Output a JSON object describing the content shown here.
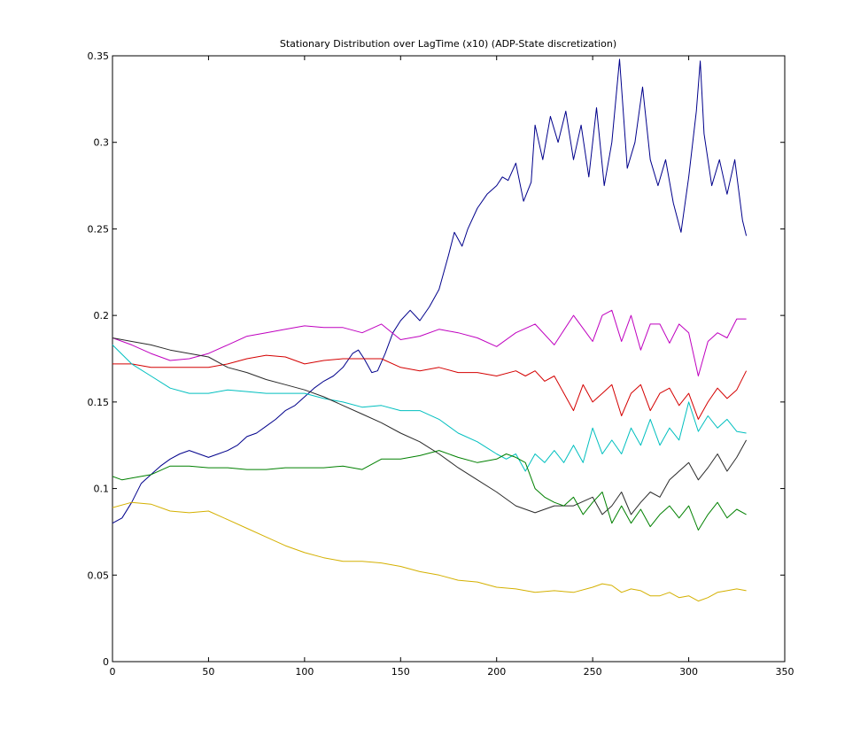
{
  "chart_data": {
    "type": "line",
    "title": "Stationary Distribution over LagTime (x10) (ADP-State discretization)",
    "xlabel": "",
    "ylabel": "",
    "xlim": [
      0,
      350
    ],
    "ylim": [
      0,
      0.35
    ],
    "xticks": [
      0,
      50,
      100,
      150,
      200,
      250,
      300,
      350
    ],
    "yticks": [
      0,
      0.05,
      0.1,
      0.15,
      0.2,
      0.25,
      0.3,
      0.35
    ],
    "xtick_labels": [
      "0",
      "50",
      "100",
      "150",
      "200",
      "250",
      "300",
      "350"
    ],
    "ytick_labels": [
      "0",
      "0.05",
      "0.1",
      "0.15",
      "0.2",
      "0.25",
      "0.3",
      "0.35"
    ],
    "grid": false,
    "series": [
      {
        "color": "#00008b",
        "x": [
          0,
          5,
          10,
          15,
          20,
          25,
          30,
          35,
          40,
          45,
          50,
          55,
          60,
          65,
          70,
          75,
          80,
          85,
          90,
          95,
          100,
          105,
          110,
          115,
          120,
          125,
          128,
          131,
          135,
          138,
          142,
          146,
          150,
          155,
          160,
          165,
          170,
          175,
          178,
          182,
          185,
          190,
          195,
          200,
          203,
          206,
          210,
          214,
          218,
          220,
          224,
          228,
          232,
          236,
          240,
          244,
          248,
          252,
          256,
          260,
          264,
          268,
          272,
          276,
          280,
          284,
          288,
          292,
          296,
          300,
          304,
          306,
          308,
          312,
          316,
          320,
          324,
          328,
          330
        ],
        "y": [
          0.08,
          0.083,
          0.092,
          0.103,
          0.108,
          0.113,
          0.117,
          0.12,
          0.122,
          0.12,
          0.118,
          0.12,
          0.122,
          0.125,
          0.13,
          0.132,
          0.136,
          0.14,
          0.145,
          0.148,
          0.153,
          0.158,
          0.162,
          0.165,
          0.17,
          0.178,
          0.18,
          0.175,
          0.167,
          0.168,
          0.178,
          0.19,
          0.197,
          0.203,
          0.197,
          0.205,
          0.215,
          0.235,
          0.248,
          0.24,
          0.25,
          0.262,
          0.27,
          0.275,
          0.28,
          0.278,
          0.288,
          0.266,
          0.277,
          0.31,
          0.29,
          0.315,
          0.3,
          0.318,
          0.29,
          0.31,
          0.28,
          0.32,
          0.275,
          0.3,
          0.348,
          0.285,
          0.3,
          0.332,
          0.29,
          0.275,
          0.29,
          0.265,
          0.248,
          0.28,
          0.318,
          0.347,
          0.305,
          0.275,
          0.29,
          0.27,
          0.29,
          0.255,
          0.246
        ]
      },
      {
        "color": "#bf00bf",
        "x": [
          0,
          10,
          20,
          30,
          40,
          50,
          60,
          70,
          80,
          90,
          100,
          110,
          120,
          130,
          140,
          150,
          160,
          170,
          180,
          190,
          200,
          210,
          220,
          230,
          240,
          250,
          255,
          260,
          265,
          270,
          275,
          280,
          285,
          290,
          295,
          300,
          305,
          310,
          315,
          320,
          325,
          330
        ],
        "y": [
          0.187,
          0.183,
          0.178,
          0.174,
          0.175,
          0.178,
          0.183,
          0.188,
          0.19,
          0.192,
          0.194,
          0.193,
          0.193,
          0.19,
          0.195,
          0.186,
          0.188,
          0.192,
          0.19,
          0.187,
          0.182,
          0.19,
          0.195,
          0.183,
          0.2,
          0.185,
          0.2,
          0.203,
          0.185,
          0.2,
          0.18,
          0.195,
          0.195,
          0.184,
          0.195,
          0.19,
          0.165,
          0.185,
          0.19,
          0.187,
          0.198,
          0.198
        ]
      },
      {
        "color": "#d40000",
        "x": [
          0,
          10,
          20,
          30,
          40,
          50,
          60,
          70,
          80,
          90,
          100,
          110,
          120,
          130,
          140,
          150,
          160,
          170,
          180,
          190,
          200,
          210,
          215,
          220,
          225,
          230,
          240,
          245,
          250,
          255,
          260,
          265,
          270,
          275,
          280,
          285,
          290,
          295,
          300,
          305,
          310,
          315,
          320,
          325,
          330
        ],
        "y": [
          0.172,
          0.172,
          0.17,
          0.17,
          0.17,
          0.17,
          0.172,
          0.175,
          0.177,
          0.176,
          0.172,
          0.174,
          0.175,
          0.175,
          0.175,
          0.17,
          0.168,
          0.17,
          0.167,
          0.167,
          0.165,
          0.168,
          0.165,
          0.168,
          0.162,
          0.165,
          0.145,
          0.16,
          0.15,
          0.155,
          0.16,
          0.142,
          0.155,
          0.16,
          0.145,
          0.155,
          0.158,
          0.148,
          0.155,
          0.14,
          0.15,
          0.158,
          0.152,
          0.157,
          0.168
        ]
      },
      {
        "color": "#00bfbf",
        "x": [
          0,
          10,
          20,
          30,
          40,
          50,
          60,
          70,
          80,
          90,
          100,
          110,
          120,
          130,
          140,
          150,
          160,
          170,
          180,
          190,
          200,
          205,
          210,
          215,
          220,
          225,
          230,
          235,
          240,
          245,
          250,
          255,
          260,
          265,
          270,
          275,
          280,
          285,
          290,
          295,
          300,
          305,
          310,
          315,
          320,
          325,
          330
        ],
        "y": [
          0.183,
          0.172,
          0.165,
          0.158,
          0.155,
          0.155,
          0.157,
          0.156,
          0.155,
          0.155,
          0.155,
          0.152,
          0.15,
          0.147,
          0.148,
          0.145,
          0.145,
          0.14,
          0.132,
          0.127,
          0.12,
          0.117,
          0.12,
          0.11,
          0.12,
          0.115,
          0.122,
          0.115,
          0.125,
          0.115,
          0.135,
          0.12,
          0.128,
          0.12,
          0.135,
          0.125,
          0.14,
          0.125,
          0.135,
          0.128,
          0.15,
          0.133,
          0.142,
          0.135,
          0.14,
          0.133,
          0.132
        ]
      },
      {
        "color": "#2a2a2a",
        "x": [
          0,
          10,
          20,
          30,
          40,
          50,
          60,
          70,
          80,
          90,
          100,
          110,
          120,
          130,
          140,
          150,
          160,
          170,
          180,
          190,
          200,
          210,
          220,
          230,
          240,
          250,
          255,
          260,
          265,
          270,
          275,
          280,
          285,
          290,
          295,
          300,
          305,
          310,
          315,
          320,
          325,
          330
        ],
        "y": [
          0.187,
          0.185,
          0.183,
          0.18,
          0.178,
          0.176,
          0.17,
          0.167,
          0.163,
          0.16,
          0.157,
          0.153,
          0.148,
          0.143,
          0.138,
          0.132,
          0.127,
          0.12,
          0.112,
          0.105,
          0.098,
          0.09,
          0.086,
          0.09,
          0.09,
          0.095,
          0.085,
          0.09,
          0.098,
          0.085,
          0.092,
          0.098,
          0.095,
          0.105,
          0.11,
          0.115,
          0.105,
          0.112,
          0.12,
          0.11,
          0.118,
          0.128
        ]
      },
      {
        "color": "#008000",
        "x": [
          0,
          5,
          10,
          20,
          30,
          40,
          50,
          60,
          70,
          80,
          90,
          100,
          110,
          120,
          130,
          140,
          150,
          160,
          170,
          180,
          190,
          200,
          205,
          210,
          215,
          220,
          225,
          230,
          235,
          240,
          245,
          250,
          255,
          260,
          265,
          270,
          275,
          280,
          285,
          290,
          295,
          300,
          305,
          310,
          315,
          320,
          325,
          330
        ],
        "y": [
          0.107,
          0.105,
          0.106,
          0.108,
          0.113,
          0.113,
          0.112,
          0.112,
          0.111,
          0.111,
          0.112,
          0.112,
          0.112,
          0.113,
          0.111,
          0.117,
          0.117,
          0.119,
          0.122,
          0.118,
          0.115,
          0.117,
          0.12,
          0.118,
          0.115,
          0.1,
          0.095,
          0.092,
          0.09,
          0.095,
          0.085,
          0.092,
          0.098,
          0.08,
          0.09,
          0.08,
          0.088,
          0.078,
          0.085,
          0.09,
          0.083,
          0.09,
          0.076,
          0.085,
          0.092,
          0.083,
          0.088,
          0.085
        ]
      },
      {
        "color": "#d4b000",
        "x": [
          0,
          10,
          20,
          30,
          40,
          50,
          60,
          70,
          80,
          90,
          100,
          110,
          120,
          130,
          140,
          150,
          160,
          170,
          180,
          190,
          200,
          210,
          220,
          230,
          240,
          250,
          255,
          260,
          265,
          270,
          275,
          280,
          285,
          290,
          295,
          300,
          305,
          310,
          315,
          320,
          325,
          330
        ],
        "y": [
          0.089,
          0.092,
          0.091,
          0.087,
          0.086,
          0.087,
          0.082,
          0.077,
          0.072,
          0.067,
          0.063,
          0.06,
          0.058,
          0.058,
          0.057,
          0.055,
          0.052,
          0.05,
          0.047,
          0.046,
          0.043,
          0.042,
          0.04,
          0.041,
          0.04,
          0.043,
          0.045,
          0.044,
          0.04,
          0.042,
          0.041,
          0.038,
          0.038,
          0.04,
          0.037,
          0.038,
          0.035,
          0.037,
          0.04,
          0.041,
          0.042,
          0.041
        ]
      }
    ]
  }
}
